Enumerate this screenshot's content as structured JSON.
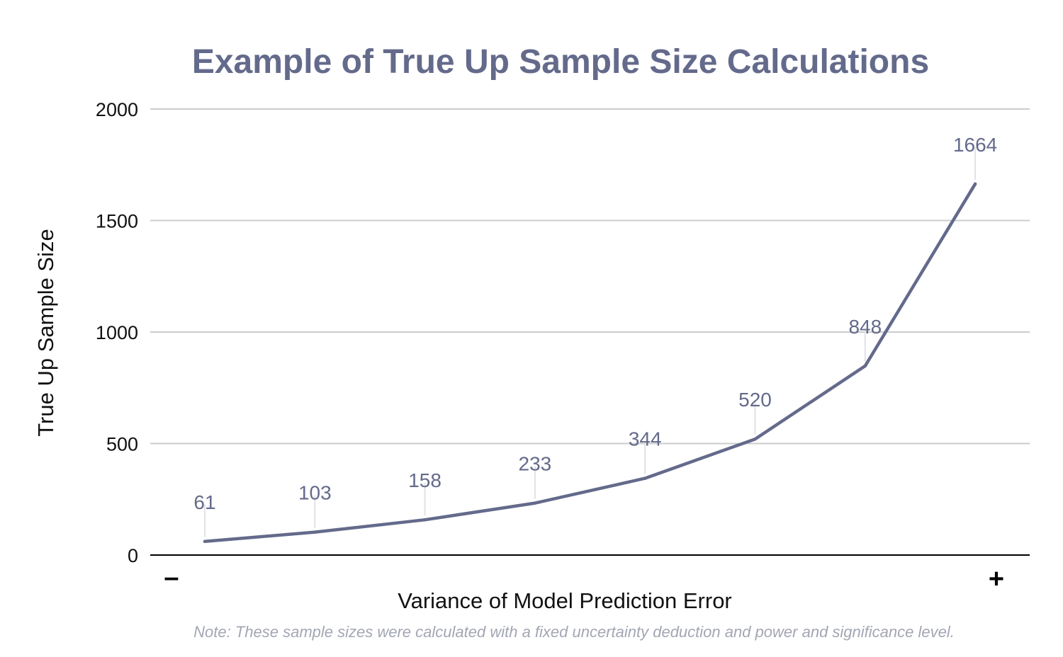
{
  "chart_data": {
    "type": "line",
    "title": "Example of True Up Sample Size Calculations",
    "xlabel": "Variance of Model Prediction Error",
    "ylabel": "True Up Sample Size",
    "x_start_label": "–",
    "x_end_label": "+",
    "ylim": [
      0,
      2000
    ],
    "yticks": [
      0,
      500,
      1000,
      1500,
      2000
    ],
    "ytick_labels": [
      "0",
      "500",
      "1000",
      "1500",
      "2000"
    ],
    "grid": true,
    "series": [
      {
        "name": "True Up Sample Size",
        "values": [
          61,
          103,
          158,
          233,
          344,
          520,
          848,
          1664
        ]
      }
    ],
    "data_labels": [
      "61",
      "103",
      "158",
      "233",
      "344",
      "520",
      "848",
      "1664"
    ],
    "note": "Note: These sample sizes were calculated with a fixed uncertainty deduction and power and significance level."
  },
  "colors": {
    "title": "#646a8b",
    "line": "#646a8b",
    "data_label": "#646a8b",
    "grid": "#cccccc",
    "axis": "#000000",
    "note": "#a3a6b4"
  }
}
